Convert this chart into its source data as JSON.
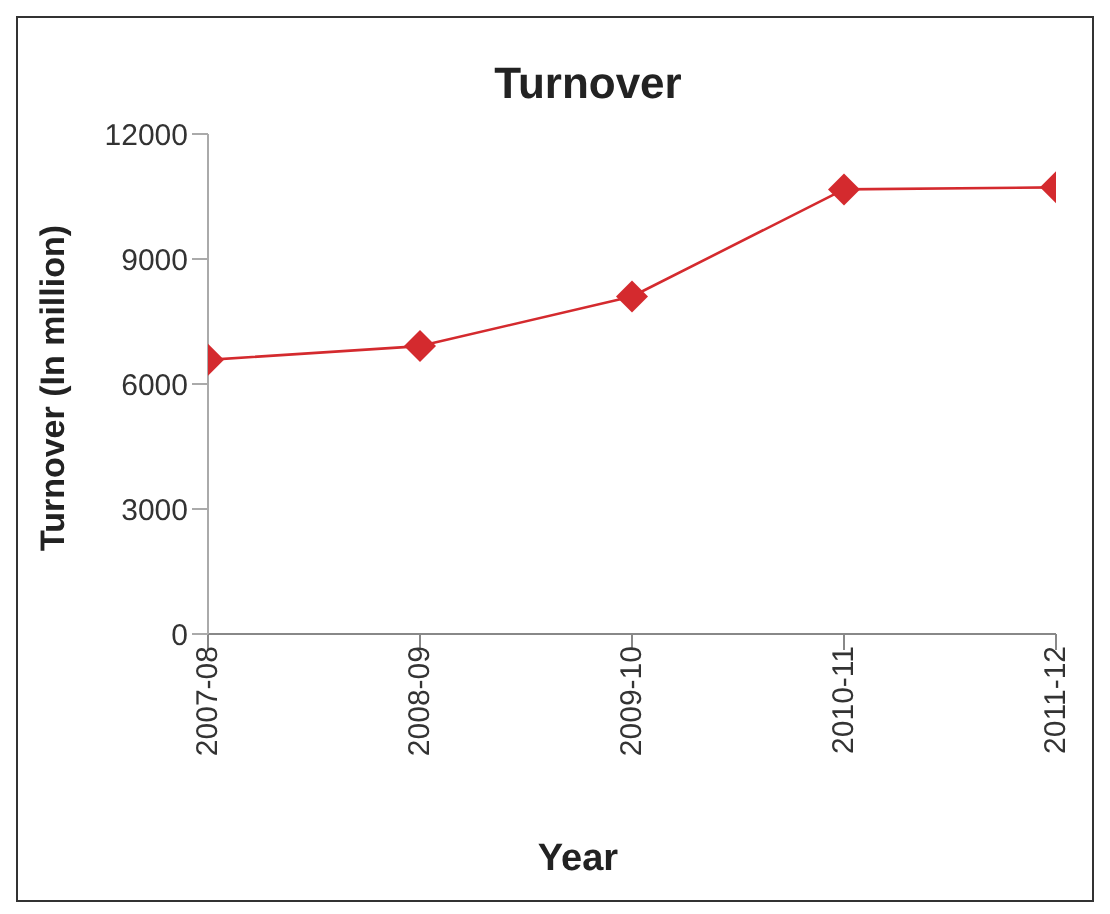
{
  "chart_data": {
    "type": "line",
    "title": "Turnover",
    "xlabel": "Year",
    "ylabel": "Turnover (In million)",
    "categories": [
      "2007-08",
      "2008-09",
      "2009-10",
      "2010-11",
      "2011-12"
    ],
    "series": [
      {
        "color": "#d42a2e",
        "values": [
          6580,
          6910,
          8100,
          10670,
          10720
        ]
      }
    ],
    "ylim": [
      0,
      12000
    ],
    "yticks": [
      0,
      3000,
      6000,
      9000,
      12000
    ],
    "grid": false,
    "legend": false,
    "marker": "diamond",
    "line_style": "solid"
  }
}
